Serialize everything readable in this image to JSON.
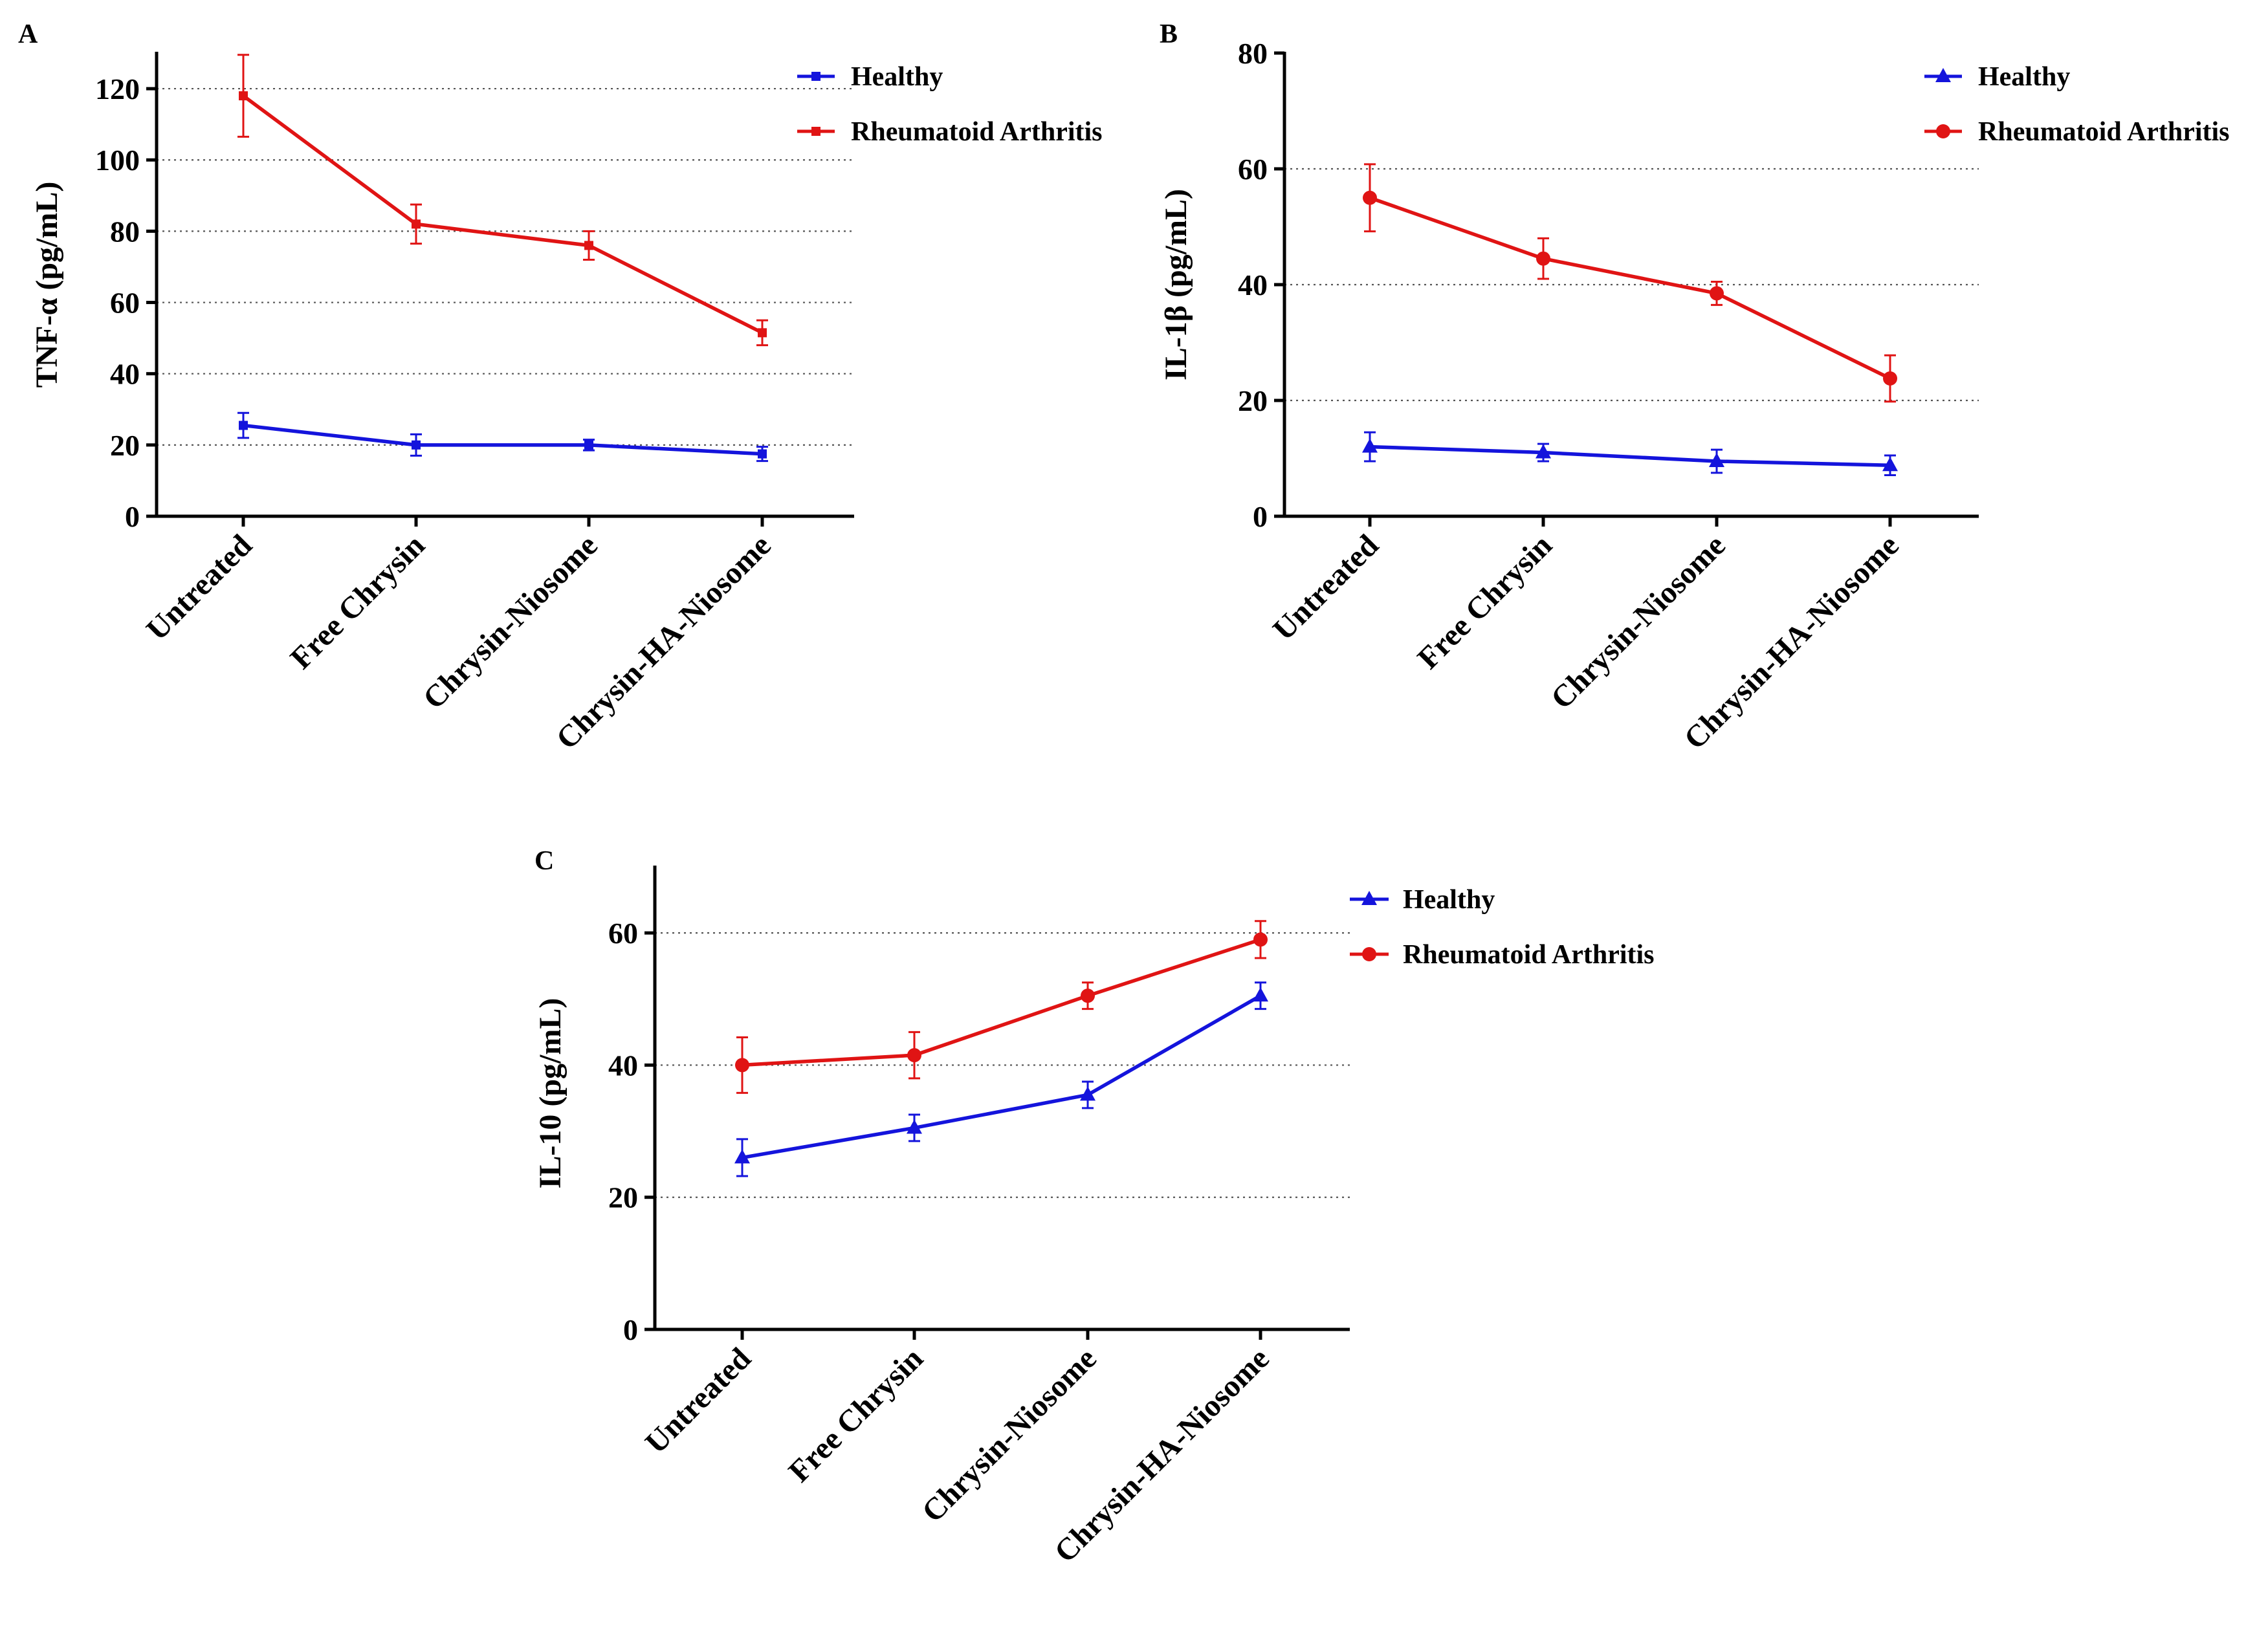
{
  "chart_data": [
    {
      "panel": "A",
      "type": "line",
      "title": "",
      "xlabel": "",
      "ylabel": "TNF-α (pg/mL)",
      "categories": [
        "Untreated",
        "Free Chrysin",
        "Chrysin-Niosome",
        "Chrysin-HA-Niosome"
      ],
      "ylim": [
        0,
        130
      ],
      "yticks": [
        0,
        20,
        40,
        60,
        80,
        100,
        120
      ],
      "gridlines": [
        20,
        40,
        60,
        80,
        100,
        120
      ],
      "legend_position": "top-right",
      "series": [
        {
          "name": "Healthy",
          "color": "#1414dc",
          "marker": "square",
          "values": [
            25.5,
            20,
            20,
            17.5
          ],
          "errors": [
            3.5,
            3,
            1.5,
            2
          ]
        },
        {
          "name": "Rheumatoid Arthritis",
          "color": "#e01414",
          "marker": "square",
          "values": [
            118,
            82,
            76,
            51.5
          ],
          "errors": [
            11.5,
            5.5,
            4,
            3.5
          ]
        }
      ]
    },
    {
      "panel": "B",
      "type": "line",
      "title": "",
      "xlabel": "",
      "ylabel": "IL-1β (pg/mL)",
      "categories": [
        "Untreated",
        "Free Chrysin",
        "Chrysin-Niosome",
        "Chrysin-HA-Niosome"
      ],
      "ylim": [
        0,
        80
      ],
      "yticks": [
        0,
        20,
        40,
        60,
        80
      ],
      "gridlines": [
        20,
        40,
        60
      ],
      "legend_position": "top-right",
      "series": [
        {
          "name": "Healthy",
          "color": "#1414dc",
          "marker": "triangle",
          "values": [
            12,
            11,
            9.5,
            8.8
          ],
          "errors": [
            2.5,
            1.5,
            2,
            1.7
          ]
        },
        {
          "name": "Rheumatoid Arthritis",
          "color": "#e01414",
          "marker": "circle",
          "values": [
            55,
            44.5,
            38.5,
            23.8
          ],
          "errors": [
            5.8,
            3.5,
            2,
            4
          ]
        }
      ]
    },
    {
      "panel": "C",
      "type": "line",
      "title": "",
      "xlabel": "",
      "ylabel": "IL-10 (pg/mL)",
      "categories": [
        "Untreated",
        "Free Chrysin",
        "Chrysin-Niosome",
        "Chrysin-HA-Niosome"
      ],
      "ylim": [
        0,
        70
      ],
      "yticks": [
        0,
        20,
        40,
        60
      ],
      "gridlines": [
        20,
        40,
        60
      ],
      "legend_position": "top-right",
      "series": [
        {
          "name": "Healthy",
          "color": "#1414dc",
          "marker": "triangle",
          "values": [
            26,
            30.5,
            35.5,
            50.5
          ],
          "errors": [
            2.8,
            2,
            2,
            2
          ]
        },
        {
          "name": "Rheumatoid Arthritis",
          "color": "#e01414",
          "marker": "circle",
          "values": [
            40,
            41.5,
            50.5,
            59
          ],
          "errors": [
            4.2,
            3.5,
            2,
            2.8
          ]
        }
      ]
    }
  ]
}
